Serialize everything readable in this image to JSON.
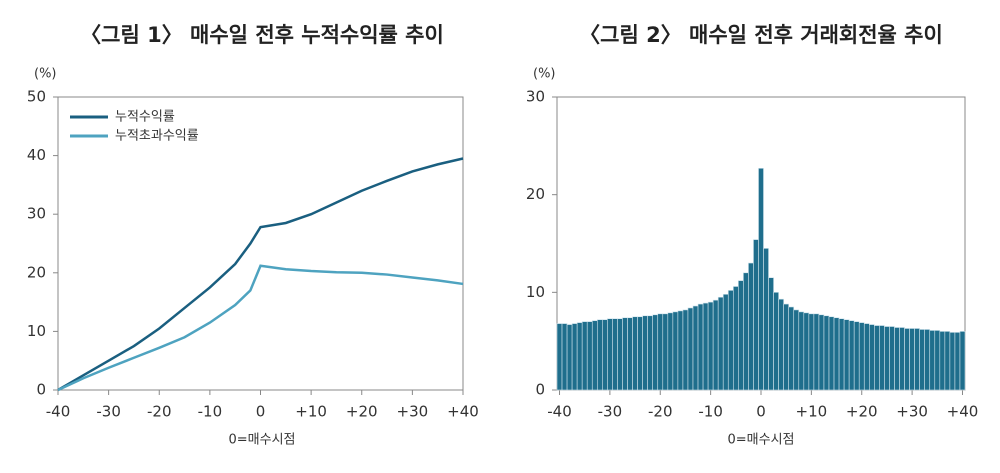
{
  "chart_data": [
    {
      "type": "line",
      "title": "〈그림 1〉 매수일 전후 누적수익률 추이",
      "y_unit": "(%)",
      "x_label": "0=매수시점",
      "x": [
        -40,
        -35,
        -30,
        -25,
        -20,
        -15,
        -10,
        -5,
        -2,
        0,
        5,
        10,
        15,
        20,
        25,
        30,
        35,
        40
      ],
      "series": [
        {
          "name": "누적수익률",
          "color": "#1a5f80",
          "values": [
            0,
            2.5,
            5,
            7.5,
            10.5,
            14,
            17.5,
            21.5,
            25,
            27.8,
            28.5,
            30,
            32,
            34,
            35.7,
            37.3,
            38.5,
            39.5
          ]
        },
        {
          "name": "누적초과수익률",
          "color": "#4ea3c0",
          "values": [
            0,
            2,
            3.8,
            5.5,
            7.2,
            9,
            11.5,
            14.5,
            17,
            21.2,
            20.6,
            20.3,
            20.1,
            20,
            19.7,
            19.2,
            18.7,
            18.1
          ]
        }
      ],
      "xlim": [
        -40,
        40
      ],
      "xticks": [
        -40,
        -30,
        -20,
        -10,
        0,
        {
          "value": 10,
          "label": "+10"
        },
        {
          "value": 20,
          "label": "+20"
        },
        {
          "value": 30,
          "label": "+30"
        },
        {
          "value": 40,
          "label": "+40"
        }
      ],
      "ylim": [
        0,
        50
      ],
      "yticks": [
        0,
        10,
        20,
        30,
        40,
        50
      ],
      "legend": "top-left"
    },
    {
      "type": "bar",
      "title": "〈그림 2〉 매수일 전후 거래회전율 추이",
      "y_unit": "(%)",
      "x_label": "0=매수시점",
      "color": "#1f6e8c",
      "x": [
        -40,
        -39,
        -38,
        -37,
        -36,
        -35,
        -34,
        -33,
        -32,
        -31,
        -30,
        -29,
        -28,
        -27,
        -26,
        -25,
        -24,
        -23,
        -22,
        -21,
        -20,
        -19,
        -18,
        -17,
        -16,
        -15,
        -14,
        -13,
        -12,
        -11,
        -10,
        -9,
        -8,
        -7,
        -6,
        -5,
        -4,
        -3,
        -2,
        -1,
        0,
        1,
        2,
        3,
        4,
        5,
        6,
        7,
        8,
        9,
        10,
        11,
        12,
        13,
        14,
        15,
        16,
        17,
        18,
        19,
        20,
        21,
        22,
        23,
        24,
        25,
        26,
        27,
        28,
        29,
        30,
        31,
        32,
        33,
        34,
        35,
        36,
        37,
        38,
        39,
        40
      ],
      "values": [
        6.8,
        6.8,
        6.7,
        6.8,
        6.9,
        7.0,
        7.0,
        7.1,
        7.2,
        7.2,
        7.3,
        7.3,
        7.3,
        7.4,
        7.4,
        7.5,
        7.5,
        7.6,
        7.6,
        7.7,
        7.8,
        7.8,
        7.9,
        8.0,
        8.1,
        8.2,
        8.4,
        8.6,
        8.8,
        8.9,
        9.0,
        9.2,
        9.5,
        9.8,
        10.2,
        10.6,
        11.2,
        12.0,
        13.0,
        15.4,
        22.7,
        14.5,
        11.5,
        10.0,
        9.3,
        8.8,
        8.5,
        8.2,
        8.0,
        7.9,
        7.8,
        7.8,
        7.7,
        7.6,
        7.5,
        7.4,
        7.3,
        7.2,
        7.1,
        7.0,
        6.9,
        6.8,
        6.7,
        6.6,
        6.6,
        6.5,
        6.5,
        6.4,
        6.4,
        6.3,
        6.3,
        6.3,
        6.2,
        6.2,
        6.1,
        6.1,
        6.0,
        6.0,
        5.9,
        5.9,
        6.0
      ],
      "xlim": [
        -40.5,
        40.5
      ],
      "xticks": [
        -40,
        -30,
        -20,
        -10,
        0,
        {
          "value": 10,
          "label": "+10"
        },
        {
          "value": 20,
          "label": "+20"
        },
        {
          "value": 30,
          "label": "+30"
        },
        {
          "value": 40,
          "label": "+40"
        }
      ],
      "ylim": [
        0,
        30
      ],
      "yticks": [
        0,
        10,
        20,
        30
      ]
    }
  ]
}
